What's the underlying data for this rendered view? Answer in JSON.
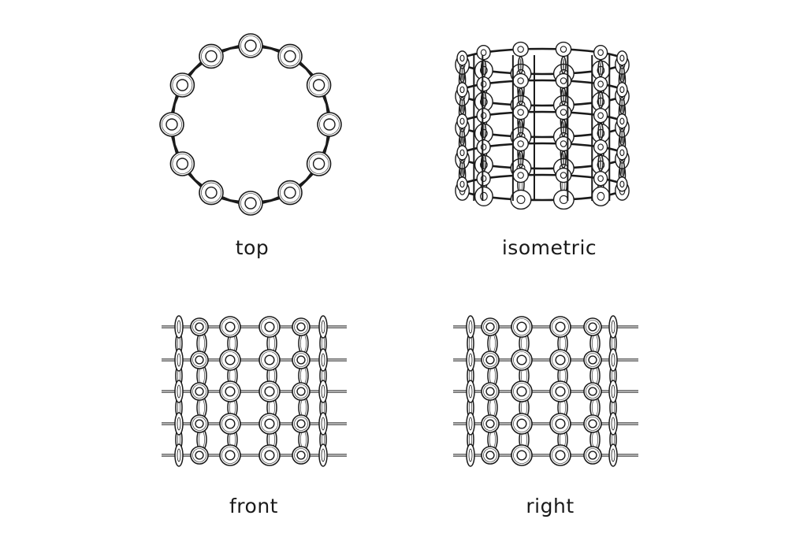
{
  "figure": {
    "subject": "chainmail",
    "stroke_color": "#1a1a1a",
    "views": [
      {
        "key": "top",
        "label": "top"
      },
      {
        "key": "isometric",
        "label": "isometric"
      },
      {
        "key": "front",
        "label": "front"
      },
      {
        "key": "right",
        "label": "right"
      }
    ]
  },
  "structure": {
    "columns_visible": 6,
    "rows": 5,
    "ring_count_top": 12
  }
}
